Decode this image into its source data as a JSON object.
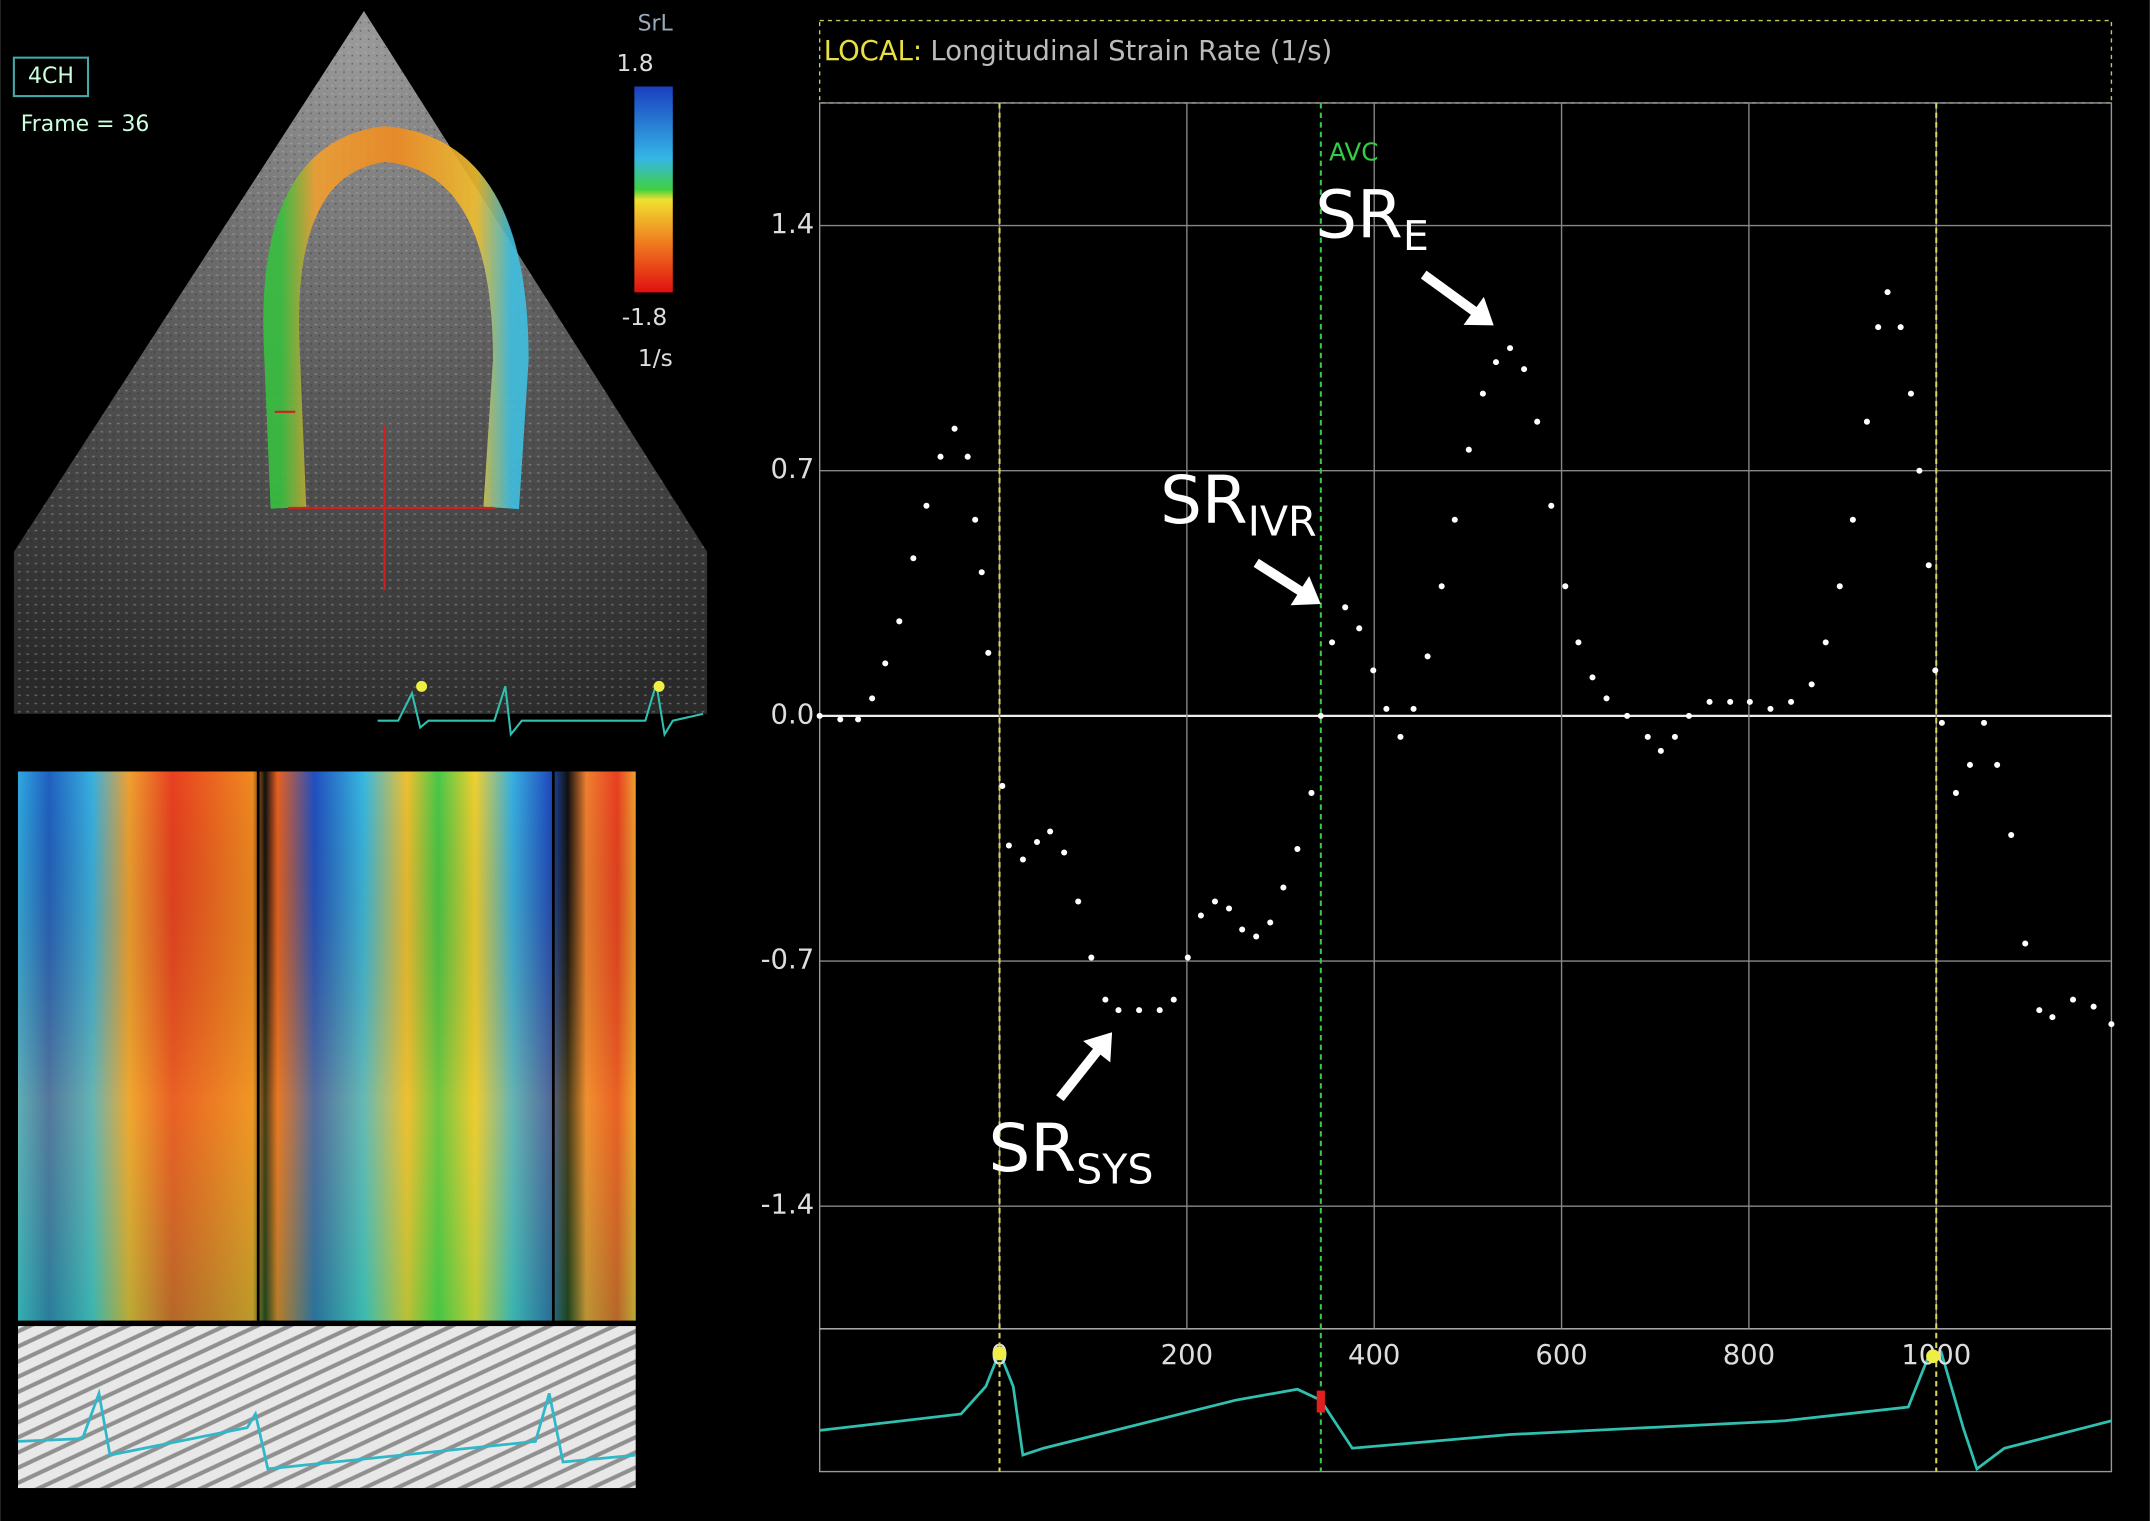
{
  "chart_data": {
    "type": "scatter",
    "header": {
      "prefix": "LOCAL:",
      "title": "Longitudinal Strain Rate (1/s)"
    },
    "x": [
      -192,
      -170,
      -151,
      -136,
      -122,
      -107,
      -92,
      -78,
      -63,
      -48,
      -34,
      -26,
      -19,
      -12,
      3,
      10,
      25,
      40,
      54,
      69,
      84,
      98,
      113,
      127,
      149,
      171,
      186,
      201,
      215,
      230,
      245,
      259,
      274,
      289,
      303,
      318,
      333,
      343,
      355,
      369,
      384,
      399,
      413,
      428,
      442,
      457,
      472,
      486,
      501,
      516,
      530,
      545,
      560,
      574,
      589,
      604,
      618,
      633,
      648,
      670,
      692,
      706,
      721,
      736,
      758,
      780,
      801,
      823,
      845,
      867,
      882,
      897,
      911,
      926,
      938,
      948,
      962,
      973,
      982,
      992,
      999,
      1006,
      1021,
      1036,
      1051,
      1065,
      1080,
      1095,
      1110,
      1124,
      1146,
      1168,
      1187
    ],
    "values": [
      0,
      -0.01,
      -0.01,
      0.05,
      0.15,
      0.27,
      0.45,
      0.6,
      0.74,
      0.82,
      0.74,
      0.56,
      0.41,
      0.18,
      -0.2,
      -0.37,
      -0.41,
      -0.36,
      -0.33,
      -0.39,
      -0.53,
      -0.69,
      -0.81,
      -0.84,
      -0.84,
      -0.84,
      -0.81,
      -0.69,
      -0.57,
      -0.53,
      -0.55,
      -0.61,
      -0.63,
      -0.59,
      -0.49,
      -0.38,
      -0.22,
      0,
      0.21,
      0.31,
      0.25,
      0.13,
      0.02,
      -0.06,
      0.02,
      0.17,
      0.37,
      0.56,
      0.76,
      0.92,
      1.01,
      1.05,
      0.99,
      0.84,
      0.6,
      0.37,
      0.21,
      0.11,
      0.05,
      0,
      -0.06,
      -0.1,
      -0.06,
      0,
      0.04,
      0.04,
      0.04,
      0.02,
      0.04,
      0.09,
      0.21,
      0.37,
      0.56,
      0.84,
      1.11,
      1.21,
      1.11,
      0.92,
      0.7,
      0.43,
      0.13,
      -0.02,
      -0.22,
      -0.14,
      -0.02,
      -0.14,
      -0.34,
      -0.65,
      -0.84,
      -0.86,
      -0.81,
      -0.83,
      -0.88
    ],
    "color": "#ffffff",
    "xlim": [
      -192,
      1187
    ],
    "ylim": [
      -1.75,
      1.75
    ],
    "xticks": [
      0,
      200,
      400,
      600,
      800,
      1000
    ],
    "yticks": [
      1.4,
      0.7,
      {
        "value": 0,
        "label": "0.0"
      },
      -0.7,
      -1.4
    ],
    "grid": true,
    "events": [
      {
        "x": 0,
        "color": "#d6d65a"
      },
      {
        "x": 343,
        "label": "AVC",
        "color": "#33cc44"
      },
      {
        "x": 1000,
        "color": "#d6d65a"
      }
    ],
    "annotations": [
      {
        "text": "SR",
        "subscript": "E"
      },
      {
        "text": "SR",
        "subscript": "IVR"
      },
      {
        "text": "SR",
        "subscript": "SYS"
      }
    ],
    "echo": {
      "view": "4CH",
      "frame": "Frame = 36",
      "scale_name": "SrL",
      "scale_max": "1.8",
      "scale_min": "-1.8",
      "scale_unit": "1/s"
    }
  }
}
